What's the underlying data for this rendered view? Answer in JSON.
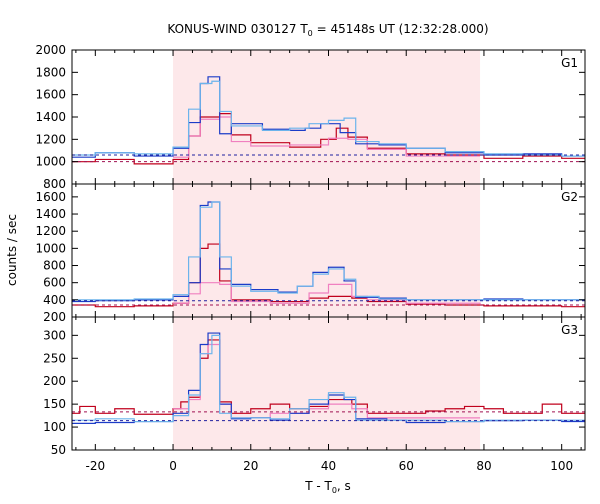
{
  "title": {
    "main": "KONUS-WIND 030127 T",
    "sub": "0",
    "rest": " = 45148s UT (12:32:28.000)"
  },
  "ylabel": "counts / sec",
  "xlabel": {
    "main": "T - T",
    "sub": "0",
    "rest": ", s"
  },
  "colors": {
    "highlight": "#fde8ea",
    "dark_red": "#c0001c",
    "pink": "#f080c0",
    "dark_blue": "#1c3cc8",
    "light_blue": "#6cb4ec",
    "dashed_red": "#a01050",
    "dashed_blue": "#2020a0"
  },
  "chart_data": [
    {
      "type": "line",
      "panel_label": "G1",
      "x_range": [
        -26,
        106
      ],
      "highlight_range": [
        0,
        79
      ],
      "ylim": [
        800,
        2000
      ],
      "yticks": [
        800,
        1000,
        1200,
        1400,
        1600,
        1800,
        2000
      ],
      "background_levels": [
        {
          "y": 1000,
          "color": "dashed_red"
        },
        {
          "y": 1060,
          "color": "dashed_blue"
        }
      ],
      "series": [
        {
          "color": "dark_red",
          "step": [
            [
              -26,
              1000
            ],
            [
              -20,
              1020
            ],
            [
              -10,
              980
            ],
            [
              0,
              1020
            ],
            [
              4,
              1230
            ],
            [
              7,
              1400
            ],
            [
              12,
              1430
            ],
            [
              15,
              1240
            ],
            [
              20,
              1170
            ],
            [
              30,
              1130
            ],
            [
              38,
              1200
            ],
            [
              42,
              1300
            ],
            [
              45,
              1220
            ],
            [
              50,
              1120
            ],
            [
              60,
              1070
            ],
            [
              70,
              1060
            ],
            [
              80,
              1030
            ],
            [
              90,
              1050
            ],
            [
              100,
              1030
            ],
            [
              106,
              1030
            ]
          ]
        },
        {
          "color": "pink",
          "step": [
            [
              0,
              1040
            ],
            [
              4,
              1230
            ],
            [
              7,
              1380
            ],
            [
              12,
              1400
            ],
            [
              15,
              1180
            ],
            [
              20,
              1140
            ],
            [
              30,
              1150
            ],
            [
              40,
              1210
            ],
            [
              45,
              1200
            ],
            [
              50,
              1110
            ],
            [
              60,
              1050
            ],
            [
              79,
              1050
            ]
          ]
        },
        {
          "color": "dark_blue",
          "step": [
            [
              -26,
              1040
            ],
            [
              -20,
              1080
            ],
            [
              -10,
              1050
            ],
            [
              0,
              1120
            ],
            [
              4,
              1350
            ],
            [
              7,
              1700
            ],
            [
              9,
              1760
            ],
            [
              12,
              1250
            ],
            [
              15,
              1340
            ],
            [
              23,
              1290
            ],
            [
              30,
              1280
            ],
            [
              34,
              1300
            ],
            [
              38,
              1340
            ],
            [
              43,
              1260
            ],
            [
              47,
              1160
            ],
            [
              53,
              1150
            ],
            [
              60,
              1120
            ],
            [
              70,
              1080
            ],
            [
              80,
              1060
            ],
            [
              90,
              1070
            ],
            [
              100,
              1050
            ],
            [
              106,
              1050
            ]
          ]
        },
        {
          "color": "light_blue",
          "step": [
            [
              -26,
              1060
            ],
            [
              -20,
              1080
            ],
            [
              -10,
              1070
            ],
            [
              0,
              1130
            ],
            [
              4,
              1470
            ],
            [
              7,
              1700
            ],
            [
              10,
              1720
            ],
            [
              12,
              1450
            ],
            [
              15,
              1320
            ],
            [
              23,
              1280
            ],
            [
              30,
              1300
            ],
            [
              35,
              1340
            ],
            [
              40,
              1370
            ],
            [
              44,
              1390
            ],
            [
              47,
              1180
            ],
            [
              53,
              1160
            ],
            [
              60,
              1120
            ],
            [
              70,
              1090
            ],
            [
              80,
              1070
            ],
            [
              90,
              1060
            ],
            [
              100,
              1050
            ],
            [
              106,
              1050
            ]
          ]
        }
      ]
    },
    {
      "type": "line",
      "panel_label": "G2",
      "x_range": [
        -26,
        106
      ],
      "highlight_range": [
        0,
        79
      ],
      "ylim": [
        200,
        1750
      ],
      "yticks": [
        200,
        400,
        600,
        800,
        1000,
        1200,
        1400,
        1600
      ],
      "background_levels": [
        {
          "y": 340,
          "color": "dashed_red"
        },
        {
          "y": 390,
          "color": "dashed_blue"
        }
      ],
      "series": [
        {
          "color": "dark_red",
          "step": [
            [
              -26,
              340
            ],
            [
              -20,
              320
            ],
            [
              -10,
              330
            ],
            [
              0,
              360
            ],
            [
              4,
              600
            ],
            [
              7,
              1000
            ],
            [
              9,
              1050
            ],
            [
              12,
              620
            ],
            [
              15,
              400
            ],
            [
              25,
              380
            ],
            [
              35,
              420
            ],
            [
              40,
              440
            ],
            [
              46,
              420
            ],
            [
              50,
              380
            ],
            [
              60,
              350
            ],
            [
              70,
              340
            ],
            [
              80,
              330
            ],
            [
              90,
              330
            ],
            [
              100,
              320
            ],
            [
              106,
              320
            ]
          ]
        },
        {
          "color": "pink",
          "step": [
            [
              0,
              360
            ],
            [
              4,
              470
            ],
            [
              7,
              600
            ],
            [
              12,
              580
            ],
            [
              15,
              380
            ],
            [
              25,
              360
            ],
            [
              35,
              480
            ],
            [
              40,
              580
            ],
            [
              46,
              440
            ],
            [
              50,
              400
            ],
            [
              60,
              360
            ],
            [
              79,
              350
            ]
          ]
        },
        {
          "color": "dark_blue",
          "step": [
            [
              -26,
              380
            ],
            [
              -20,
              390
            ],
            [
              -10,
              400
            ],
            [
              0,
              440
            ],
            [
              4,
              600
            ],
            [
              7,
              1500
            ],
            [
              9,
              1540
            ],
            [
              12,
              760
            ],
            [
              15,
              580
            ],
            [
              20,
              520
            ],
            [
              27,
              490
            ],
            [
              32,
              560
            ],
            [
              36,
              720
            ],
            [
              40,
              780
            ],
            [
              44,
              620
            ],
            [
              47,
              430
            ],
            [
              53,
              420
            ],
            [
              60,
              400
            ],
            [
              70,
              400
            ],
            [
              80,
              410
            ],
            [
              90,
              400
            ],
            [
              100,
              400
            ],
            [
              106,
              400
            ]
          ]
        },
        {
          "color": "light_blue",
          "step": [
            [
              -26,
              400
            ],
            [
              -20,
              400
            ],
            [
              -10,
              410
            ],
            [
              0,
              460
            ],
            [
              4,
              900
            ],
            [
              7,
              1480
            ],
            [
              10,
              1540
            ],
            [
              12,
              900
            ],
            [
              15,
              560
            ],
            [
              20,
              500
            ],
            [
              27,
              480
            ],
            [
              32,
              560
            ],
            [
              36,
              700
            ],
            [
              40,
              760
            ],
            [
              44,
              640
            ],
            [
              47,
              440
            ],
            [
              53,
              410
            ],
            [
              60,
              400
            ],
            [
              80,
              400
            ],
            [
              106,
              400
            ]
          ]
        }
      ]
    },
    {
      "type": "line",
      "panel_label": "G3",
      "x_range": [
        -26,
        106
      ],
      "highlight_range": [
        0,
        79
      ],
      "ylim": [
        50,
        340
      ],
      "yticks": [
        50,
        100,
        150,
        200,
        250,
        300
      ],
      "background_levels": [
        {
          "y": 133,
          "color": "dashed_red"
        },
        {
          "y": 114,
          "color": "dashed_blue"
        }
      ],
      "series": [
        {
          "color": "dark_red",
          "step": [
            [
              -26,
              130
            ],
            [
              -24,
              145
            ],
            [
              -20,
              130
            ],
            [
              -15,
              140
            ],
            [
              -10,
              128
            ],
            [
              0,
              140
            ],
            [
              2,
              155
            ],
            [
              4,
              165
            ],
            [
              7,
              250
            ],
            [
              9,
              290
            ],
            [
              12,
              155
            ],
            [
              15,
              130
            ],
            [
              20,
              140
            ],
            [
              25,
              150
            ],
            [
              30,
              140
            ],
            [
              35,
              145
            ],
            [
              40,
              160
            ],
            [
              46,
              150
            ],
            [
              50,
              130
            ],
            [
              60,
              130
            ],
            [
              65,
              135
            ],
            [
              70,
              140
            ],
            [
              75,
              145
            ],
            [
              80,
              140
            ],
            [
              85,
              130
            ],
            [
              90,
              130
            ],
            [
              95,
              150
            ],
            [
              100,
              130
            ],
            [
              106,
              130
            ]
          ]
        },
        {
          "color": "pink",
          "step": [
            [
              0,
              140
            ],
            [
              4,
              160
            ],
            [
              7,
              260
            ],
            [
              9,
              280
            ],
            [
              12,
              150
            ],
            [
              15,
              120
            ],
            [
              25,
              130
            ],
            [
              35,
              140
            ],
            [
              40,
              150
            ],
            [
              46,
              140
            ],
            [
              50,
              120
            ],
            [
              60,
              120
            ],
            [
              79,
              120
            ]
          ]
        },
        {
          "color": "dark_blue",
          "step": [
            [
              -26,
              108
            ],
            [
              -20,
              110
            ],
            [
              -10,
              112
            ],
            [
              0,
              130
            ],
            [
              4,
              180
            ],
            [
              7,
              280
            ],
            [
              9,
              305
            ],
            [
              12,
              150
            ],
            [
              15,
              118
            ],
            [
              20,
              120
            ],
            [
              25,
              115
            ],
            [
              30,
              130
            ],
            [
              35,
              150
            ],
            [
              40,
              170
            ],
            [
              44,
              160
            ],
            [
              47,
              118
            ],
            [
              55,
              115
            ],
            [
              60,
              110
            ],
            [
              70,
              112
            ],
            [
              80,
              114
            ],
            [
              90,
              115
            ],
            [
              100,
              112
            ],
            [
              106,
              110
            ]
          ]
        },
        {
          "color": "light_blue",
          "step": [
            [
              -26,
              115
            ],
            [
              -20,
              118
            ],
            [
              -10,
              112
            ],
            [
              0,
              125
            ],
            [
              4,
              170
            ],
            [
              7,
              260
            ],
            [
              10,
              300
            ],
            [
              12,
              130
            ],
            [
              15,
              120
            ],
            [
              25,
              118
            ],
            [
              30,
              140
            ],
            [
              35,
              160
            ],
            [
              40,
              175
            ],
            [
              44,
              165
            ],
            [
              47,
              115
            ],
            [
              60,
              115
            ],
            [
              70,
              112
            ],
            [
              80,
              115
            ],
            [
              106,
              115
            ]
          ]
        }
      ]
    }
  ],
  "xaxis": {
    "tick_values": [
      -20,
      0,
      20,
      40,
      60,
      80,
      100
    ],
    "minor_step": 5
  }
}
